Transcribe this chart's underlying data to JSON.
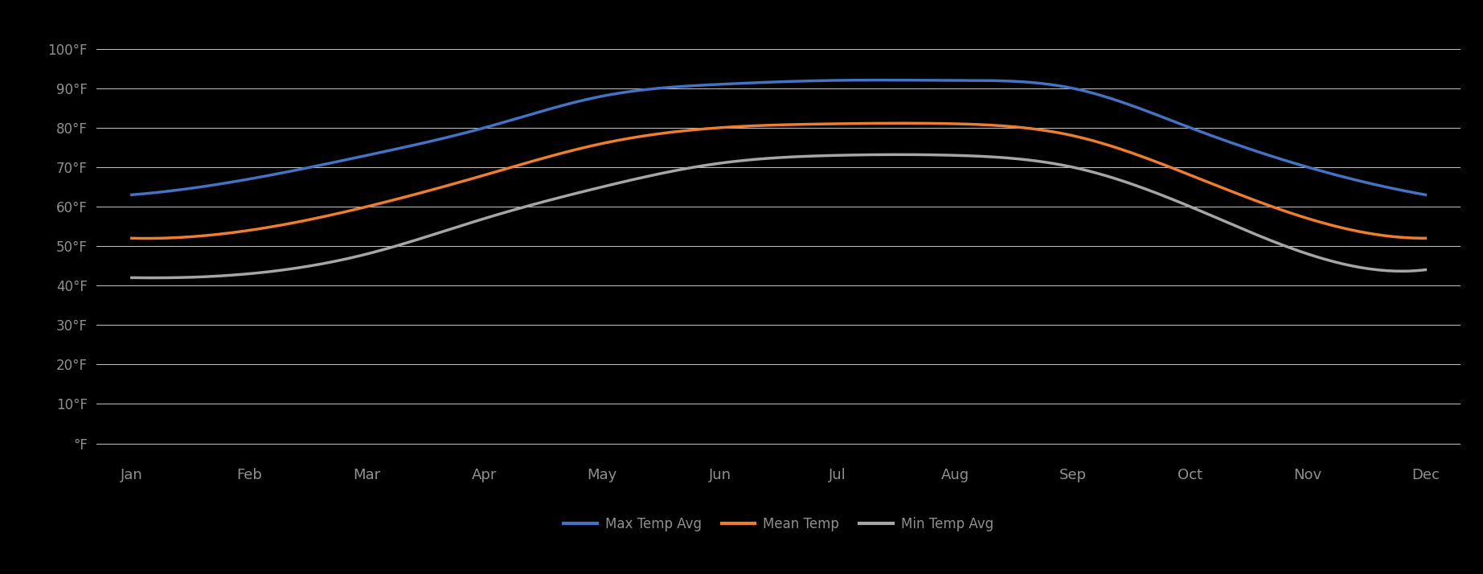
{
  "months": [
    "Jan",
    "Feb",
    "Mar",
    "Apr",
    "May",
    "Jun",
    "Jul",
    "Aug",
    "Sep",
    "Oct",
    "Nov",
    "Dec"
  ],
  "max_temp": [
    63,
    67,
    73,
    80,
    88,
    91,
    92,
    92,
    90,
    80,
    70,
    63
  ],
  "mean_temp": [
    52,
    54,
    60,
    68,
    76,
    80,
    81,
    81,
    78,
    68,
    57,
    52
  ],
  "min_temp": [
    42,
    43,
    48,
    57,
    65,
    71,
    73,
    73,
    70,
    60,
    48,
    44
  ],
  "max_color": "#4472c4",
  "mean_color": "#ed7d31",
  "min_color": "#a6a6a6",
  "bg_color": "#000000",
  "grid_color": "#c8c8c8",
  "text_color": "#909090",
  "line_width": 2.5,
  "yticks": [
    0,
    10,
    20,
    30,
    40,
    50,
    60,
    70,
    80,
    90,
    100
  ],
  "ytick_labels": [
    "°F",
    "10°F",
    "20°F",
    "30°F",
    "40°F",
    "50°F",
    "60°F",
    "70°F",
    "80°F",
    "90°F",
    "100°F"
  ],
  "ylim": [
    -4,
    108
  ],
  "legend_labels": [
    "Max Temp Avg",
    "Mean Temp",
    "Min Temp Avg"
  ],
  "legend_colors": [
    "#4472c4",
    "#ed7d31",
    "#a6a6a6"
  ]
}
